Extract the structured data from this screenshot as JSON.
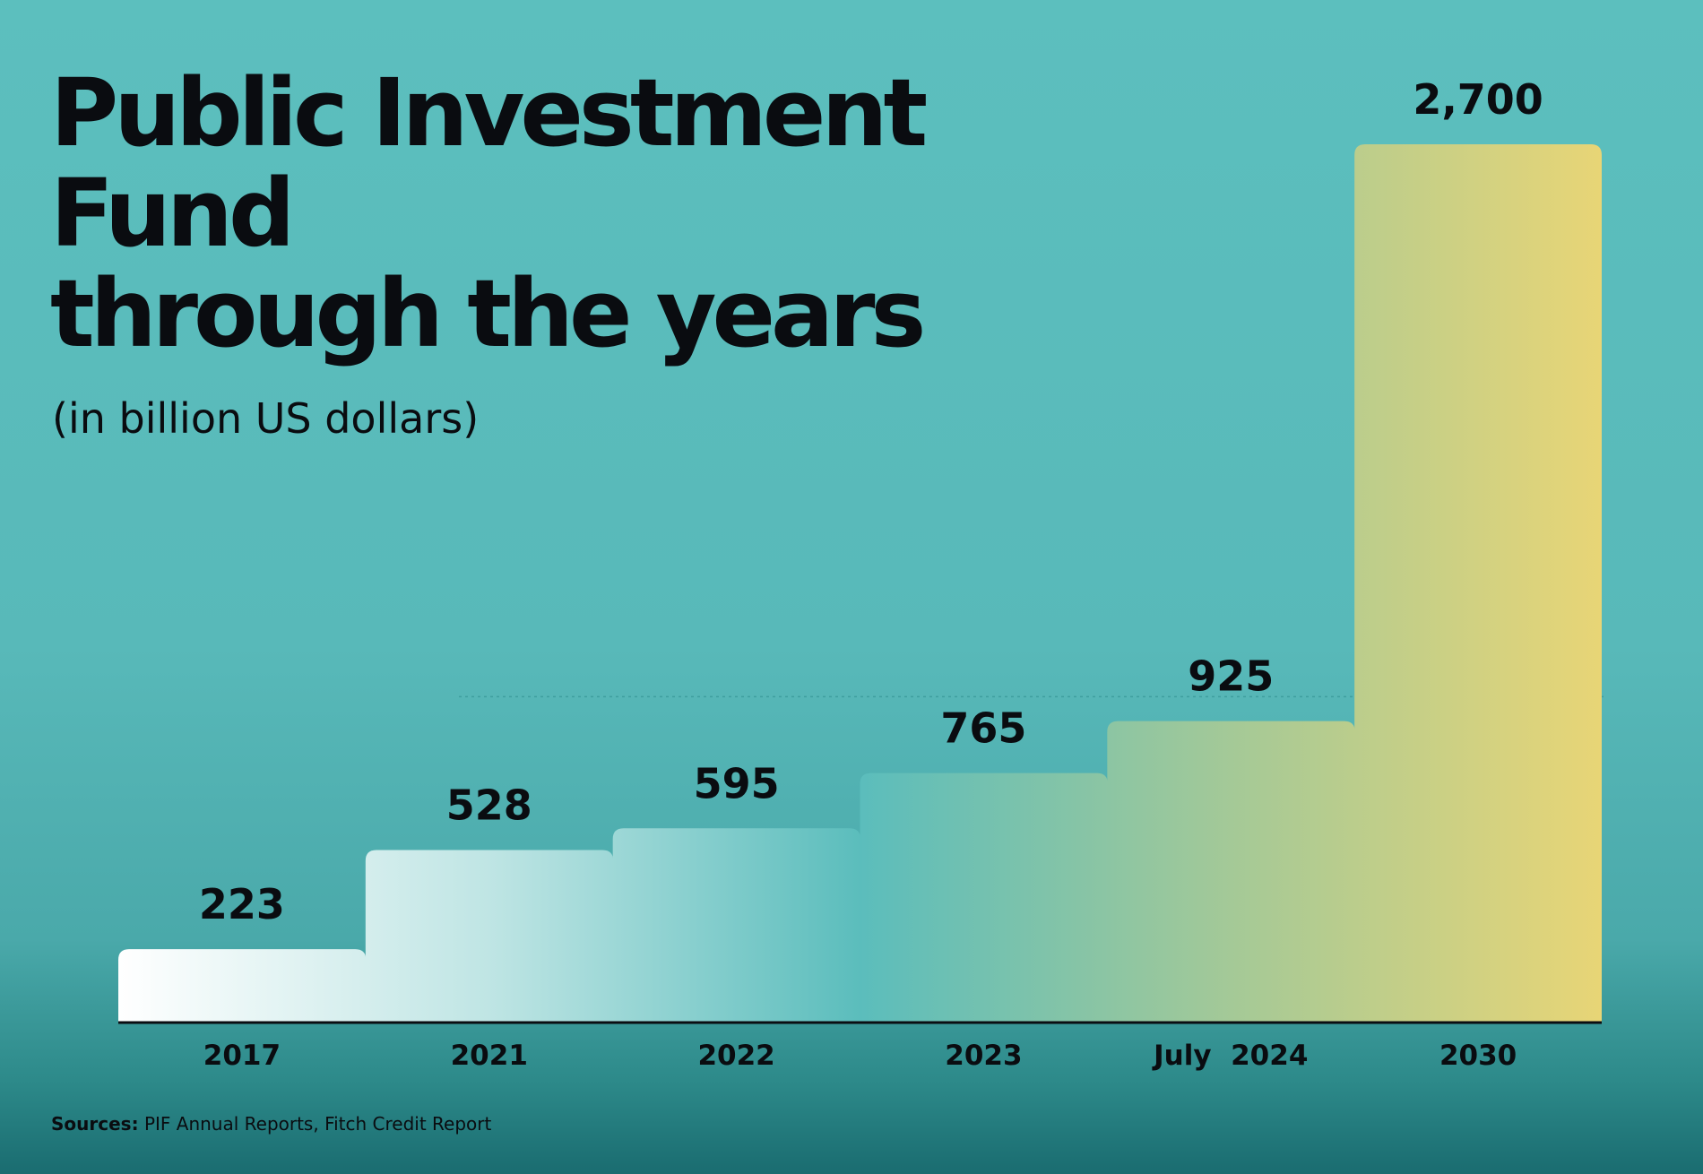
{
  "title_lines": [
    "Public Investment",
    "Fund",
    "through the years"
  ],
  "subtitle": "(in billion US dollars)",
  "sources": {
    "label": "Sources:",
    "text": "PIF Annual Reports, Fitch Credit Report"
  },
  "colors": {
    "bar_gradient": [
      "#ffffff",
      "#bfe5e4",
      "#5bbdbc",
      "#a4c997",
      "#e8d576"
    ],
    "text": "#0a0c10",
    "dotted_line": "#3f9f9f"
  },
  "chart_data": {
    "type": "bar",
    "style": "stepped",
    "categories": [
      "2017",
      "2021",
      "2022",
      "2023",
      "July  2024",
      "2030"
    ],
    "values": [
      223,
      528,
      595,
      765,
      925,
      2700
    ],
    "data_labels": [
      "223",
      "528",
      "595",
      "765",
      "925",
      "2,700"
    ],
    "ylim": [
      0,
      2700
    ],
    "grid": false,
    "reference_line": 1000
  }
}
